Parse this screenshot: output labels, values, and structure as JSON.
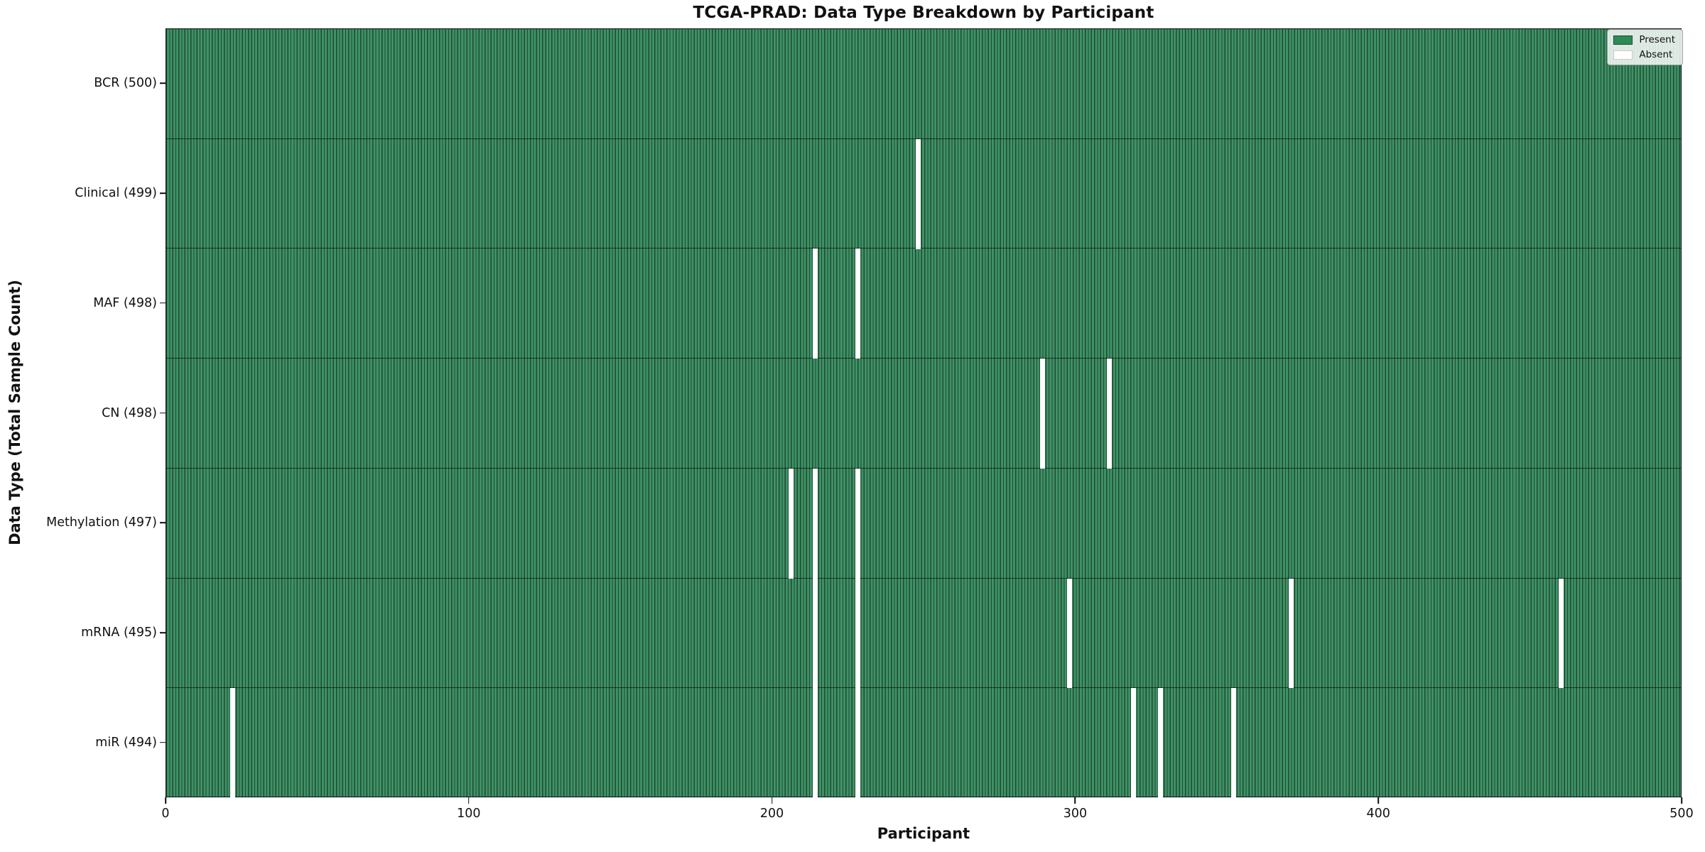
{
  "colors": {
    "present_fill": "#3f9166",
    "present_edge": "#1e4a31",
    "absent_fill": "#ffffff",
    "legend_present_swatch": "#2e8b57",
    "legend_absent_swatch": "#ffffff"
  },
  "legend": {
    "present_label": "Present",
    "absent_label": "Absent"
  },
  "chart_data": {
    "type": "heatmap",
    "title": "TCGA-PRAD: Data Type Breakdown by Participant",
    "xlabel": "Participant",
    "ylabel": "Data Type (Total Sample Count)",
    "xlim": [
      0,
      500
    ],
    "x_ticks": [
      0,
      100,
      200,
      300,
      400,
      500
    ],
    "n_participants": 500,
    "legend_entries": [
      "Present",
      "Absent"
    ],
    "legend_position": "upper right",
    "grid": false,
    "rows": [
      {
        "label": "BCR (500)",
        "total": 500,
        "absent_participants": []
      },
      {
        "label": "Clinical (499)",
        "total": 499,
        "absent_participants": [
          248
        ]
      },
      {
        "label": "MAF (498)",
        "total": 498,
        "absent_participants": [
          214,
          228
        ]
      },
      {
        "label": "CN (498)",
        "total": 498,
        "absent_participants": [
          289,
          311
        ]
      },
      {
        "label": "Methylation (497)",
        "total": 497,
        "absent_participants": [
          206,
          214,
          228
        ]
      },
      {
        "label": "mRNA (495)",
        "total": 495,
        "absent_participants": [
          214,
          228,
          298,
          371,
          460
        ]
      },
      {
        "label": "miR (494)",
        "total": 494,
        "absent_participants": [
          22,
          214,
          228,
          319,
          328,
          352
        ]
      }
    ]
  }
}
